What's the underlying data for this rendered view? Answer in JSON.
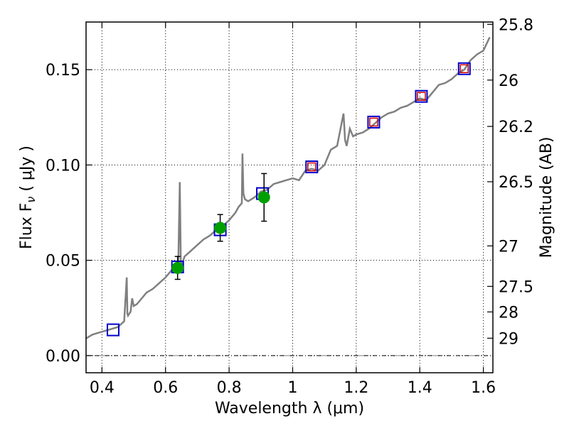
{
  "chart_data": {
    "type": "scatter",
    "xlabel": "Wavelength  λ (μm)",
    "ylabel": "Flux  F",
    "ylabel_subscript": "ν",
    "ylabel_units": " ( μJy )",
    "y2label": "Magnitude (AB)",
    "xlim": [
      0.35,
      1.63
    ],
    "ylim": [
      -0.009,
      0.175
    ],
    "x_ticks": [
      0.4,
      0.6,
      0.8,
      1.0,
      1.2,
      1.4,
      1.6
    ],
    "x_tick_labels": [
      "0.4",
      "0.6",
      "0.8",
      "1",
      "1.2",
      "1.4",
      "1.6"
    ],
    "y_ticks": [
      0.0,
      0.05,
      0.1,
      0.15
    ],
    "y_tick_labels": [
      "0.00",
      "0.05",
      "0.10",
      "0.15"
    ],
    "y2_tick_labels": [
      "25.8",
      "26",
      "26.2",
      "26.5",
      "27",
      "27.5",
      "28",
      "29"
    ],
    "grid": true,
    "model_spectrum": {
      "color": "#808080",
      "x": [
        0.35,
        0.37,
        0.39,
        0.41,
        0.43,
        0.45,
        0.47,
        0.478,
        0.48,
        0.482,
        0.49,
        0.495,
        0.5,
        0.51,
        0.52,
        0.54,
        0.56,
        0.58,
        0.6,
        0.62,
        0.64,
        0.645,
        0.648,
        0.652,
        0.66,
        0.68,
        0.7,
        0.72,
        0.74,
        0.76,
        0.78,
        0.8,
        0.82,
        0.83,
        0.84,
        0.842,
        0.845,
        0.85,
        0.86,
        0.88,
        0.9,
        0.92,
        0.94,
        0.96,
        0.98,
        1.0,
        1.02,
        1.04,
        1.06,
        1.08,
        1.1,
        1.12,
        1.14,
        1.16,
        1.165,
        1.17,
        1.18,
        1.19,
        1.2,
        1.22,
        1.24,
        1.26,
        1.28,
        1.3,
        1.32,
        1.34,
        1.36,
        1.38,
        1.4,
        1.42,
        1.44,
        1.46,
        1.48,
        1.5,
        1.52,
        1.54,
        1.56,
        1.58,
        1.6,
        1.62
      ],
      "y": [
        0.009,
        0.011,
        0.012,
        0.013,
        0.014,
        0.015,
        0.018,
        0.041,
        0.022,
        0.021,
        0.023,
        0.03,
        0.026,
        0.027,
        0.029,
        0.033,
        0.035,
        0.038,
        0.041,
        0.045,
        0.047,
        0.091,
        0.049,
        0.048,
        0.052,
        0.055,
        0.058,
        0.061,
        0.063,
        0.066,
        0.068,
        0.071,
        0.075,
        0.078,
        0.08,
        0.106,
        0.085,
        0.082,
        0.081,
        0.083,
        0.086,
        0.087,
        0.09,
        0.091,
        0.092,
        0.093,
        0.092,
        0.097,
        0.098,
        0.097,
        0.1,
        0.108,
        0.11,
        0.127,
        0.113,
        0.11,
        0.119,
        0.115,
        0.116,
        0.117,
        0.119,
        0.122,
        0.125,
        0.127,
        0.128,
        0.13,
        0.131,
        0.133,
        0.135,
        0.134,
        0.138,
        0.142,
        0.143,
        0.145,
        0.148,
        0.15,
        0.155,
        0.158,
        0.16,
        0.167
      ]
    },
    "model_points": {
      "color": "#0000cc",
      "x": [
        0.435,
        0.638,
        0.772,
        0.905,
        1.06,
        1.255,
        1.405,
        1.54
      ],
      "y": [
        0.0135,
        0.0465,
        0.066,
        0.085,
        0.099,
        0.1225,
        0.136,
        0.1505
      ]
    },
    "observed": {
      "color": "#00a000",
      "x": [
        0.638,
        0.772,
        0.91
      ],
      "y": [
        0.046,
        0.067,
        0.083
      ],
      "yerr": [
        0.006,
        0.007,
        0.0125
      ]
    },
    "upper_points": {
      "color": "#cc0000",
      "x": [
        1.06,
        1.255,
        1.405,
        1.54
      ],
      "y": [
        0.099,
        0.1225,
        0.136,
        0.1505
      ]
    }
  }
}
